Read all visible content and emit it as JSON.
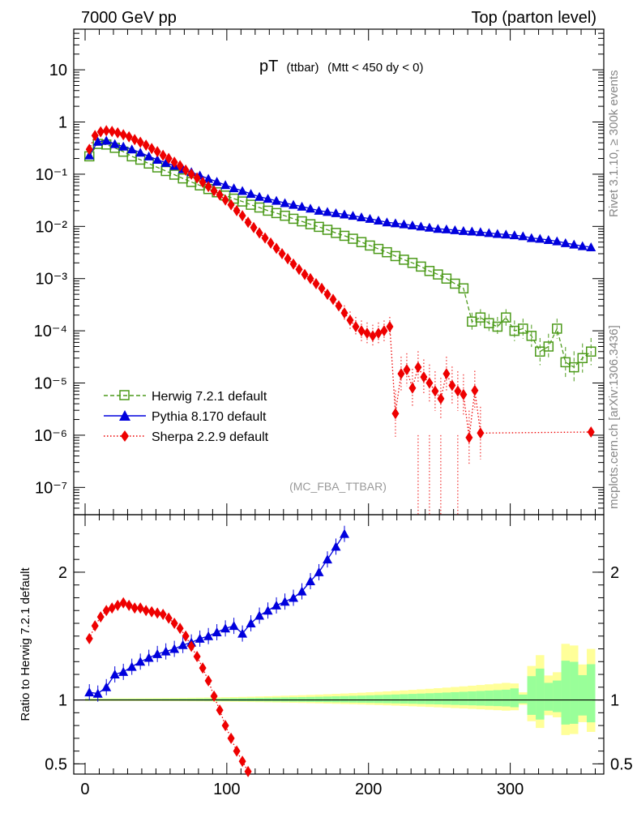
{
  "header": {
    "left": "7000 GeV pp",
    "right": "Top (parton level)"
  },
  "side_labels": {
    "rivet": "Rivet 3.1.10, ≥ 300k events",
    "mcplots": "mcplots.cern.ch [arXiv:1306.3436]"
  },
  "chart_data": {
    "type": "line",
    "title": "pT",
    "title_sub": "(ttbar)",
    "title_cut": "(Mtt < 450 dy < 0)",
    "watermark": "(MC_FBA_TTBAR)",
    "xlim": [
      -8,
      366
    ],
    "x_ticks": [
      "0",
      "100",
      "200",
      "300"
    ],
    "main_panel": {
      "scale": "log",
      "ylim": [
        3e-08,
        60
      ],
      "y_ticks": [
        "10",
        "1",
        "10⁻¹",
        "10⁻²",
        "10⁻³",
        "10⁻⁴",
        "10⁻⁵",
        "10⁻⁶",
        "10⁻⁷"
      ],
      "legend_position": "lower-left",
      "series": [
        {
          "name": "Herwig 7.2.1 default",
          "color": "#4c9a1a",
          "marker": "open-square",
          "line": "dashed",
          "x": [
            3,
            9,
            15,
            21,
            27,
            33,
            39,
            45,
            51,
            57,
            63,
            69,
            75,
            81,
            87,
            93,
            99,
            105,
            111,
            117,
            123,
            129,
            135,
            141,
            147,
            153,
            159,
            165,
            171,
            177,
            183,
            189,
            195,
            201,
            207,
            213,
            219,
            225,
            231,
            237,
            243,
            249,
            255,
            261,
            267,
            273,
            279,
            285,
            291,
            297,
            303,
            309,
            315,
            321,
            327,
            333,
            339,
            345,
            351,
            357
          ],
          "y": [
            0.22,
            0.38,
            0.37,
            0.32,
            0.27,
            0.22,
            0.19,
            0.16,
            0.135,
            0.115,
            0.098,
            0.083,
            0.071,
            0.061,
            0.052,
            0.045,
            0.039,
            0.034,
            0.03,
            0.026,
            0.023,
            0.02,
            0.018,
            0.016,
            0.014,
            0.0125,
            0.011,
            0.0098,
            0.0086,
            0.0075,
            0.0066,
            0.0058,
            0.005,
            0.0043,
            0.0037,
            0.0032,
            0.0027,
            0.0023,
            0.002,
            0.0017,
            0.0014,
            0.0012,
            0.001,
            0.0008,
            0.00065,
            0.00015,
            0.00018,
            0.00014,
            0.00012,
            0.00018,
            0.0001,
            0.00011,
            8e-05,
            4e-05,
            5e-05,
            0.00011,
            2.5e-05,
            2e-05,
            3e-05,
            4e-05
          ]
        },
        {
          "name": "Pythia 8.170 default",
          "color": "#0000dd",
          "marker": "filled-triangle",
          "line": "solid",
          "x": [
            3,
            9,
            15,
            21,
            27,
            33,
            39,
            45,
            51,
            57,
            63,
            69,
            75,
            81,
            87,
            93,
            99,
            105,
            111,
            117,
            123,
            129,
            135,
            141,
            147,
            153,
            159,
            165,
            171,
            177,
            183,
            189,
            195,
            201,
            207,
            213,
            219,
            225,
            231,
            237,
            243,
            249,
            255,
            261,
            267,
            273,
            279,
            285,
            291,
            297,
            303,
            309,
            315,
            321,
            327,
            333,
            339,
            345,
            351,
            357
          ],
          "y": [
            0.23,
            0.42,
            0.44,
            0.38,
            0.34,
            0.3,
            0.26,
            0.22,
            0.19,
            0.165,
            0.145,
            0.125,
            0.11,
            0.095,
            0.082,
            0.072,
            0.062,
            0.054,
            0.048,
            0.042,
            0.037,
            0.034,
            0.031,
            0.028,
            0.026,
            0.024,
            0.022,
            0.02,
            0.019,
            0.018,
            0.017,
            0.016,
            0.015,
            0.014,
            0.013,
            0.012,
            0.0115,
            0.011,
            0.0105,
            0.01,
            0.0095,
            0.009,
            0.0088,
            0.0085,
            0.0082,
            0.008,
            0.0078,
            0.0075,
            0.0072,
            0.007,
            0.0068,
            0.0065,
            0.006,
            0.0058,
            0.0055,
            0.0052,
            0.0048,
            0.0045,
            0.0042,
            0.004
          ]
        },
        {
          "name": "Sherpa 2.2.9 default",
          "color": "#ee0000",
          "marker": "filled-diamond",
          "line": "dotted",
          "x": [
            3,
            7,
            11,
            15,
            19,
            23,
            27,
            31,
            35,
            39,
            43,
            47,
            51,
            55,
            59,
            63,
            67,
            71,
            75,
            79,
            83,
            87,
            91,
            95,
            99,
            103,
            107,
            111,
            115,
            119,
            123,
            127,
            131,
            135,
            139,
            143,
            147,
            151,
            155,
            159,
            163,
            167,
            171,
            175,
            179,
            183,
            187,
            191,
            195,
            199,
            203,
            207,
            211,
            215,
            219,
            223,
            227,
            231,
            235,
            239,
            243,
            247,
            251,
            255,
            259,
            263,
            267,
            271,
            275,
            279
          ],
          "y": [
            0.3,
            0.55,
            0.65,
            0.68,
            0.66,
            0.62,
            0.57,
            0.52,
            0.46,
            0.41,
            0.36,
            0.31,
            0.27,
            0.23,
            0.2,
            0.17,
            0.145,
            0.12,
            0.1,
            0.085,
            0.07,
            0.058,
            0.048,
            0.04,
            0.032,
            0.026,
            0.02,
            0.016,
            0.012,
            0.0095,
            0.0075,
            0.006,
            0.0048,
            0.0038,
            0.003,
            0.0024,
            0.0019,
            0.0015,
            0.0012,
            0.001,
            0.0008,
            0.00065,
            0.0005,
            0.0004,
            0.0003,
            0.00022,
            0.00016,
            0.00012,
            0.0001,
            9e-05,
            8e-05,
            9e-05,
            0.0001,
            0.00012,
            2.6e-06,
            1.5e-05,
            1.8e-05,
            8e-06,
            2e-05,
            1.3e-05,
            1e-05,
            7e-06,
            5e-06,
            1.5e-05,
            9e-06,
            7e-06,
            6e-06,
            9e-07,
            7.2e-06,
            1.1e-06
          ],
          "last_point": [
            357,
            1.15e-06
          ]
        }
      ]
    },
    "ratio_panel": {
      "ylabel": "Ratio to Herwig 7.2.1 default",
      "ylim": [
        0.42,
        2.45
      ],
      "y_ticks": [
        "2",
        "1",
        "0.5"
      ],
      "band_inner_color": "#99ff99",
      "band_outer_color": "#ffff99",
      "pythia_ratio": {
        "x": [
          3,
          9,
          15,
          21,
          27,
          33,
          39,
          45,
          51,
          57,
          63,
          69,
          75,
          81,
          87,
          93,
          99,
          105,
          111,
          117,
          123,
          129,
          135,
          141,
          147,
          153,
          159,
          165,
          171,
          177,
          183
        ],
        "y": [
          1.06,
          1.05,
          1.1,
          1.2,
          1.22,
          1.26,
          1.3,
          1.33,
          1.36,
          1.38,
          1.4,
          1.43,
          1.45,
          1.48,
          1.5,
          1.53,
          1.56,
          1.58,
          1.52,
          1.6,
          1.66,
          1.7,
          1.74,
          1.77,
          1.8,
          1.85,
          1.93,
          2.0,
          2.1,
          2.2,
          2.3
        ]
      },
      "sherpa_ratio": {
        "x": [
          3,
          7,
          11,
          15,
          19,
          23,
          27,
          31,
          35,
          39,
          43,
          47,
          51,
          55,
          59,
          63,
          67,
          71,
          75,
          79,
          83,
          87,
          91,
          95,
          99,
          103,
          107,
          111,
          115
        ],
        "y": [
          1.48,
          1.58,
          1.65,
          1.7,
          1.72,
          1.74,
          1.76,
          1.74,
          1.72,
          1.72,
          1.7,
          1.69,
          1.68,
          1.67,
          1.64,
          1.6,
          1.56,
          1.5,
          1.42,
          1.34,
          1.25,
          1.15,
          1.03,
          0.92,
          0.8,
          0.7,
          0.6,
          0.52,
          0.44
        ]
      }
    }
  }
}
